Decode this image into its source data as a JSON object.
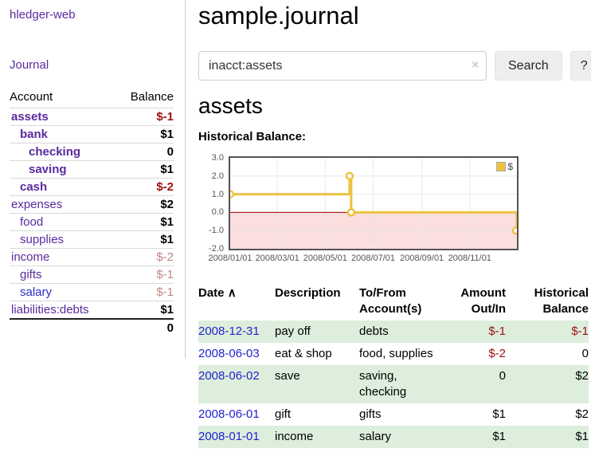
{
  "sidebar": {
    "app_link": "hledger-web",
    "journal_link": "Journal",
    "accounts_table": {
      "headers": {
        "account": "Account",
        "balance": "Balance"
      },
      "rows": [
        {
          "name": "assets",
          "indent": 1,
          "bold": true,
          "blue": false,
          "balance": "$-1",
          "bclass": "neg"
        },
        {
          "name": "bank",
          "indent": 2,
          "bold": true,
          "blue": false,
          "balance": "$1",
          "bclass": "pos"
        },
        {
          "name": "checking",
          "indent": 3,
          "bold": true,
          "blue": false,
          "balance": "0",
          "bclass": "pos"
        },
        {
          "name": "saving",
          "indent": 3,
          "bold": true,
          "blue": false,
          "balance": "$1",
          "bclass": "pos"
        },
        {
          "name": "cash",
          "indent": 2,
          "bold": true,
          "blue": false,
          "balance": "$-2",
          "bclass": "neg"
        },
        {
          "name": "expenses",
          "indent": 1,
          "bold": false,
          "blue": false,
          "balance": "$2",
          "bclass": "pos"
        },
        {
          "name": "food",
          "indent": 2,
          "bold": false,
          "blue": false,
          "balance": "$1",
          "bclass": "pos"
        },
        {
          "name": "supplies",
          "indent": 2,
          "bold": false,
          "blue": false,
          "balance": "$1",
          "bclass": "pos"
        },
        {
          "name": "income",
          "indent": 1,
          "bold": false,
          "blue": false,
          "balance": "$-2",
          "bclass": "neg-dim"
        },
        {
          "name": "gifts",
          "indent": 2,
          "bold": false,
          "blue": false,
          "balance": "$-1",
          "bclass": "neg-dim"
        },
        {
          "name": "salary",
          "indent": 2,
          "bold": false,
          "blue": true,
          "balance": "$-1",
          "bclass": "neg-dim"
        },
        {
          "name": "liabilities:debts",
          "indent": 1,
          "bold": false,
          "blue": false,
          "balance": "$1",
          "bclass": "pos"
        }
      ],
      "total": "0"
    }
  },
  "main": {
    "title": "sample.journal",
    "search": {
      "value": "inacct:assets",
      "clear_icon": "×",
      "search_button": "Search",
      "help_button": "?"
    },
    "account_heading": "assets",
    "chart_heading": "Historical Balance:"
  },
  "chart_data": {
    "type": "line",
    "title": "Historical Balance",
    "step": true,
    "series": [
      {
        "name": "$",
        "points": [
          {
            "date": "2008-01-01",
            "x": 0,
            "y": 1
          },
          {
            "date": "2008-06-01",
            "x": 152,
            "y": 2
          },
          {
            "date": "2008-06-03",
            "x": 154,
            "y": 0
          },
          {
            "date": "2008-12-31",
            "x": 365,
            "y": -1
          }
        ]
      }
    ],
    "x_max": 365,
    "ylim": [
      -2,
      3
    ],
    "y_ticks": [
      "3.0",
      "2.0",
      "1.0",
      "0.0",
      "-1.0",
      "-2.0"
    ],
    "x_ticks": [
      {
        "pos": 0,
        "label": "2008/01/01"
      },
      {
        "pos": 60,
        "label": "2008/03/01"
      },
      {
        "pos": 121,
        "label": "2008/05/01"
      },
      {
        "pos": 182,
        "label": "2008/07/01"
      },
      {
        "pos": 244,
        "label": "2008/09/01"
      },
      {
        "pos": 305,
        "label": "2008/11/01"
      }
    ],
    "legend": {
      "label": "$",
      "swatch_color": "#edc240"
    },
    "colors": {
      "line": "#edc240",
      "marker_fill": "#ffffff",
      "negative_fill": "#fbdede",
      "zero_line": "#990000",
      "grid": "#e8e8e8",
      "border": "#545454"
    },
    "grid": true,
    "legend_position": "top-right"
  },
  "register": {
    "headers": {
      "date": "Date",
      "sort_icon": "∧",
      "description": "Description",
      "tofrom_line1": "To/From",
      "tofrom_line2": "Account(s)",
      "amount_line1": "Amount",
      "amount_line2": "Out/In",
      "balance_line1": "Historical",
      "balance_line2": "Balance"
    },
    "rows": [
      {
        "date": "2008-12-31",
        "description": "pay off",
        "accounts": "debts",
        "amount": "$-1",
        "amount_neg": true,
        "balance": "$-1",
        "balance_neg": true
      },
      {
        "date": "2008-06-03",
        "description": "eat & shop",
        "accounts": "food, supplies",
        "amount": "$-2",
        "amount_neg": true,
        "balance": "0",
        "balance_neg": false
      },
      {
        "date": "2008-06-02",
        "description": "save",
        "accounts": "saving, checking",
        "amount": "0",
        "amount_neg": false,
        "balance": "$2",
        "balance_neg": false
      },
      {
        "date": "2008-06-01",
        "description": "gift",
        "accounts": "gifts",
        "amount": "$1",
        "amount_neg": false,
        "balance": "$2",
        "balance_neg": false
      },
      {
        "date": "2008-01-01",
        "description": "income",
        "accounts": "salary",
        "amount": "$1",
        "amount_neg": false,
        "balance": "$1",
        "balance_neg": false
      }
    ]
  },
  "colors": {
    "purple_link": "#5b2a9d",
    "blue_link": "#2323cc",
    "negative": "#a01010",
    "negative_dim": "#c28484",
    "row_stripe": "#ddeedd"
  }
}
